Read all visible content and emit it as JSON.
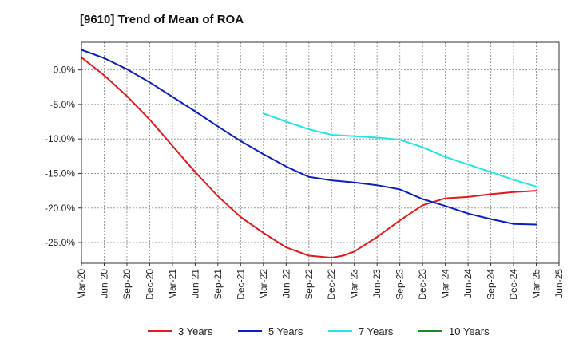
{
  "chart_data": {
    "type": "line",
    "title": "[9610]  Trend of Mean of ROA",
    "xlabel": "",
    "ylabel": "",
    "ylim": [
      -28.0,
      4.0
    ],
    "yticks": [
      0,
      -5,
      -10,
      -15,
      -20,
      -25
    ],
    "ytick_labels": [
      "0.0%",
      "-5.0%",
      "-10.0%",
      "-15.0%",
      "-20.0%",
      "-25.0%"
    ],
    "x_range": [
      0,
      21
    ],
    "x_tick_labels": [
      "Mar-20",
      "Jun-20",
      "Sep-20",
      "Dec-20",
      "Mar-21",
      "Jun-21",
      "Sep-21",
      "Dec-21",
      "Mar-22",
      "Jun-22",
      "Sep-22",
      "Dec-22",
      "Mar-23",
      "Jun-23",
      "Sep-23",
      "Dec-23",
      "Mar-24",
      "Jun-24",
      "Sep-24",
      "Dec-24",
      "Mar-25",
      "Jun-25"
    ],
    "grid": true,
    "legend_position": "bottom",
    "series": [
      {
        "name": "3 Years",
        "color": "#e31a1c",
        "x": [
          0,
          1,
          2,
          3,
          4,
          5,
          6,
          7,
          8,
          9,
          10,
          11,
          11.5,
          12,
          13,
          14,
          15,
          16,
          17,
          18,
          19,
          20
        ],
        "values": [
          1.8,
          -0.8,
          -3.8,
          -7.2,
          -11.0,
          -14.8,
          -18.3,
          -21.3,
          -23.6,
          -25.7,
          -26.9,
          -27.2,
          -26.9,
          -26.3,
          -24.2,
          -21.8,
          -19.6,
          -18.6,
          -18.4,
          -18.0,
          -17.7,
          -17.5
        ]
      },
      {
        "name": "5 Years",
        "color": "#0b1fbf",
        "x": [
          0,
          1,
          2,
          3,
          4,
          5,
          6,
          7,
          8,
          9,
          10,
          11,
          12,
          13,
          14,
          15,
          16,
          17,
          18,
          19,
          20
        ],
        "values": [
          2.9,
          1.7,
          0.1,
          -1.8,
          -3.9,
          -6.0,
          -8.2,
          -10.3,
          -12.2,
          -14.0,
          -15.5,
          -16.0,
          -16.3,
          -16.7,
          -17.3,
          -18.7,
          -19.7,
          -20.8,
          -21.6,
          -22.3,
          -22.4
        ]
      },
      {
        "name": "7 Years",
        "color": "#22e5e5",
        "x": [
          8,
          9,
          10,
          11,
          12,
          13,
          14,
          15,
          16,
          17,
          18,
          19,
          20
        ],
        "values": [
          -6.3,
          -7.5,
          -8.6,
          -9.4,
          -9.6,
          -9.8,
          -10.1,
          -11.2,
          -12.6,
          -13.7,
          -14.8,
          -15.9,
          -16.9
        ]
      },
      {
        "name": "10 Years",
        "color": "#1e8c1e",
        "x": [],
        "values": []
      }
    ]
  }
}
